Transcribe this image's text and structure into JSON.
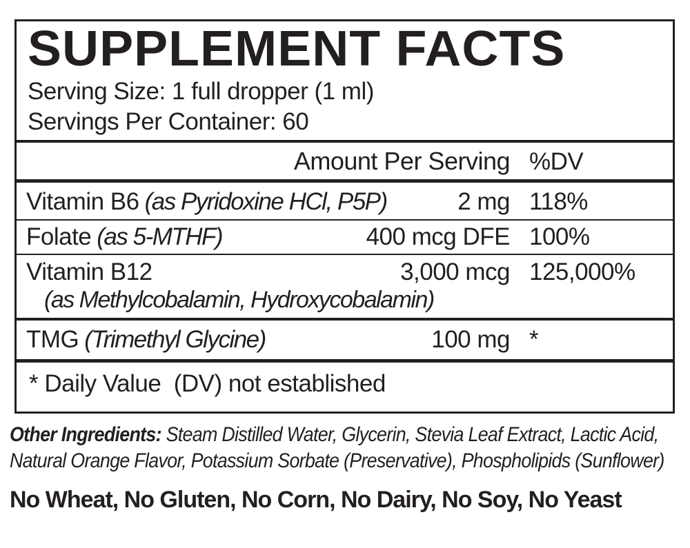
{
  "label": {
    "title": "SUPPLEMENT FACTS",
    "serving_size": "Serving Size: 1 full dropper (1 ml)",
    "servings_per_container": "Servings Per Container: 60",
    "column_headers": {
      "amount": "Amount Per Serving",
      "dv": "%DV"
    },
    "rows": [
      {
        "name": "Vitamin B6",
        "name_note": "(as Pyridoxine HCl, P5P)",
        "amount": "2 mg",
        "dv": "118%"
      },
      {
        "name": "Folate",
        "name_note": "(as 5-MTHF)",
        "amount": "400 mcg DFE",
        "dv": "100%"
      },
      {
        "name": "Vitamin B12",
        "name_note": "",
        "amount": "3,000 mcg",
        "dv": "125,000%",
        "subnote": "(as Methylcobalamin, Hydroxycobalamin)"
      },
      {
        "name": "TMG",
        "name_note": "(Trimethyl Glycine)",
        "amount": "100 mg",
        "dv": "*"
      }
    ],
    "footnote": "* Daily Value  (DV) not established",
    "other_ingredients_label": "Other Ingredients:",
    "other_ingredients": " Steam Distilled Water, Glycerin, Stevia Leaf Extract, Lactic Acid, Natural Orange Flavor, Potassium Sorbate (Preservative), Phospholipids (Sunflower)",
    "allergen_statement": "No Wheat, No Gluten, No Corn, No Dairy, No Soy, No Yeast",
    "colors": {
      "text": "#231f20",
      "border": "#231f20",
      "background": "#ffffff"
    }
  }
}
